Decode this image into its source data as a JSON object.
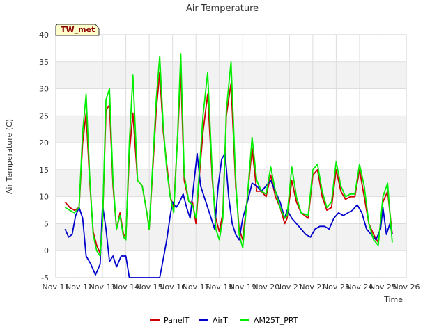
{
  "chart_data": {
    "type": "line",
    "title": "Air Temperature",
    "xlabel": "Time",
    "ylabel": "Air Temperature (C)",
    "site_label": "TW_met",
    "xlim": [
      11,
      26
    ],
    "ylim": [
      -5,
      40
    ],
    "x_ticks": [
      "Nov 11",
      "Nov 12",
      "Nov 13",
      "Nov 14",
      "Nov 15",
      "Nov 16",
      "Nov 17",
      "Nov 18",
      "Nov 19",
      "Nov 20",
      "Nov 21",
      "Nov 22",
      "Nov 23",
      "Nov 24",
      "Nov 25",
      "Nov 26"
    ],
    "y_ticks": [
      -5,
      0,
      5,
      10,
      15,
      20,
      25,
      30,
      35,
      40
    ],
    "grid": true,
    "legend_position": "bottom",
    "series": [
      {
        "name": "PanelT",
        "color": "#cc0000",
        "x": [
          11.4,
          11.6,
          11.8,
          12.0,
          12.15,
          12.3,
          12.45,
          12.6,
          12.75,
          12.9,
          13.0,
          13.15,
          13.3,
          13.45,
          13.6,
          13.75,
          13.9,
          14.0,
          14.15,
          14.3,
          14.5,
          14.7,
          14.9,
          15.0,
          15.15,
          15.3,
          15.45,
          15.6,
          15.75,
          15.9,
          16.05,
          16.2,
          16.35,
          16.5,
          16.7,
          16.85,
          17.0,
          17.15,
          17.3,
          17.5,
          17.7,
          17.85,
          18.0,
          18.15,
          18.3,
          18.5,
          18.7,
          18.85,
          19.0,
          19.2,
          19.4,
          19.6,
          19.8,
          20.0,
          20.2,
          20.4,
          20.6,
          20.8,
          20.9,
          21.1,
          21.3,
          21.5,
          21.8,
          22.0,
          22.2,
          22.4,
          22.6,
          22.8,
          23.0,
          23.2,
          23.4,
          23.6,
          23.8,
          24.0,
          24.2,
          24.4,
          24.6,
          24.8,
          25.0,
          25.2,
          25.4
        ],
        "y": [
          9,
          8,
          7.5,
          8,
          20,
          25.5,
          13,
          3.5,
          1,
          -0.5,
          5,
          26,
          27,
          12,
          4,
          7,
          3,
          2.5,
          18,
          25.5,
          13,
          12,
          7,
          4,
          15,
          26,
          33,
          22,
          16,
          10,
          8,
          20,
          33,
          13,
          9,
          9,
          5,
          14,
          22,
          29,
          13,
          6,
          3.5,
          7,
          25,
          31,
          12,
          4,
          2,
          10,
          19,
          11,
          11,
          10,
          14,
          10,
          8,
          5,
          6,
          13,
          9,
          7,
          6,
          14,
          15,
          10,
          7.5,
          8,
          15,
          11,
          9.5,
          10,
          10,
          15,
          10,
          5,
          3,
          1.5,
          9,
          11,
          3
        ]
      },
      {
        "name": "AirT",
        "color": "#0000cc",
        "x": [
          11.4,
          11.55,
          11.7,
          11.85,
          12.0,
          12.15,
          12.3,
          12.5,
          12.7,
          12.9,
          13.0,
          13.15,
          13.3,
          13.45,
          13.6,
          13.8,
          14.0,
          14.15,
          14.3,
          14.5,
          14.7,
          14.9,
          15.1,
          15.3,
          15.45,
          15.6,
          15.75,
          15.9,
          16.0,
          16.15,
          16.3,
          16.45,
          16.6,
          16.75,
          16.9,
          17.05,
          17.2,
          17.35,
          17.5,
          17.65,
          17.8,
          17.95,
          18.1,
          18.25,
          18.4,
          18.55,
          18.7,
          18.85,
          19.0,
          19.2,
          19.4,
          19.6,
          19.8,
          20.0,
          20.2,
          20.4,
          20.6,
          20.8,
          20.9,
          21.1,
          21.3,
          21.5,
          21.7,
          21.9,
          22.1,
          22.3,
          22.5,
          22.7,
          22.9,
          23.1,
          23.3,
          23.5,
          23.7,
          23.9,
          24.1,
          24.3,
          24.5,
          24.7,
          24.9,
          25.0,
          25.15,
          25.3,
          25.4
        ],
        "y": [
          4,
          2.5,
          3,
          6.5,
          8,
          6,
          -1,
          -2.5,
          -4.5,
          -2.5,
          8.5,
          4,
          -2,
          -1,
          -3,
          -1,
          -1,
          -5,
          -5,
          -5,
          -5,
          -5,
          -5,
          -5,
          -5,
          -1.5,
          2,
          6.5,
          9,
          8,
          9,
          10.5,
          8,
          6,
          12,
          18,
          12,
          10,
          8,
          6,
          4,
          12,
          17,
          18,
          10,
          5,
          3,
          2,
          6,
          9,
          12.5,
          12,
          11,
          12,
          13,
          11,
          9,
          6,
          7.5,
          6,
          5,
          4,
          3,
          2.5,
          4,
          4.5,
          4.5,
          4,
          6,
          7,
          6.5,
          7,
          7.5,
          8.5,
          7,
          4,
          3,
          2,
          4,
          8,
          3,
          5,
          3
        ]
      },
      {
        "name": "AM25T_PRT",
        "color": "#00ee00",
        "x": [
          11.4,
          11.6,
          11.8,
          12.0,
          12.15,
          12.3,
          12.45,
          12.6,
          12.75,
          12.9,
          13.0,
          13.15,
          13.3,
          13.45,
          13.6,
          13.75,
          13.9,
          14.0,
          14.15,
          14.3,
          14.5,
          14.7,
          14.9,
          15.0,
          15.15,
          15.3,
          15.45,
          15.6,
          15.75,
          15.9,
          16.05,
          16.2,
          16.35,
          16.5,
          16.7,
          16.85,
          17.0,
          17.15,
          17.3,
          17.5,
          17.7,
          17.85,
          18.0,
          18.15,
          18.3,
          18.5,
          18.7,
          18.85,
          19.0,
          19.2,
          19.4,
          19.6,
          19.8,
          20.0,
          20.2,
          20.4,
          20.6,
          20.8,
          20.9,
          21.1,
          21.3,
          21.5,
          21.8,
          22.0,
          22.2,
          22.4,
          22.6,
          22.8,
          23.0,
          23.2,
          23.4,
          23.6,
          23.8,
          24.0,
          24.2,
          24.4,
          24.6,
          24.8,
          25.0,
          25.2,
          25.4
        ],
        "y": [
          8,
          7.5,
          7,
          8,
          22,
          29,
          14,
          3,
          0,
          -1,
          5,
          28,
          30,
          13,
          4,
          6.5,
          2.5,
          2,
          20,
          32.5,
          13,
          12,
          7,
          4,
          16,
          28,
          36,
          23,
          15,
          10,
          7,
          20,
          36.5,
          14,
          9,
          8.5,
          6,
          15,
          25,
          33,
          14,
          4,
          2,
          6,
          26,
          35,
          13,
          3,
          0.5,
          10,
          21,
          13,
          11,
          10.5,
          15.5,
          11,
          8,
          6,
          6.5,
          15.5,
          10,
          7,
          6.5,
          15,
          16,
          11,
          8,
          9,
          16.5,
          12,
          10,
          10.5,
          10.5,
          16,
          12,
          5,
          2,
          1,
          10,
          12.5,
          1.5
        ]
      }
    ]
  }
}
